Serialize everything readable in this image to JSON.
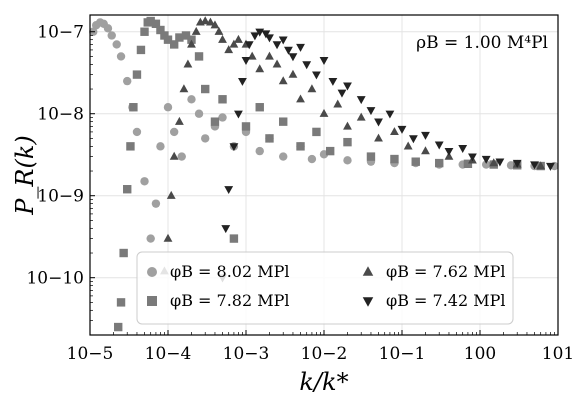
{
  "chart_data": {
    "type": "scatter",
    "xscale": "log",
    "yscale": "log",
    "xlim": [
      1e-05,
      10
    ],
    "ylim": [
      2e-11,
      1.6e-07
    ],
    "xlabel": "k/k*",
    "ylabel": "P_R(k)",
    "annotation": "ρB = 1.00 M⁴Pl",
    "grid": true,
    "legend_position": "lower-center",
    "x_ticks": [
      {
        "v": 1e-05,
        "label": "10−5"
      },
      {
        "v": 0.0001,
        "label": "10−4"
      },
      {
        "v": 0.001,
        "label": "10−3"
      },
      {
        "v": 0.01,
        "label": "10−2"
      },
      {
        "v": 0.1,
        "label": "10−1"
      },
      {
        "v": 1,
        "label": "100"
      },
      {
        "v": 10,
        "label": "101"
      }
    ],
    "y_ticks": [
      {
        "v": 1e-10,
        "label": "10−10"
      },
      {
        "v": 1e-09,
        "label": "10−9"
      },
      {
        "v": 1e-08,
        "label": "10−8"
      },
      {
        "v": 1e-07,
        "label": "10−7"
      }
    ],
    "series": [
      {
        "name": "φB = 8.02 MPl",
        "marker": "circle",
        "color": "#a0a0a0",
        "x": [
          1.1e-05,
          1.2e-05,
          1.35e-05,
          1.5e-05,
          1.7e-05,
          1.9e-05,
          2.2e-05,
          2.5e-05,
          3e-05,
          3.5e-05,
          4e-05,
          5e-05,
          6e-05,
          7e-05,
          8e-05,
          0.0001,
          0.00012,
          0.00015,
          0.0002,
          0.00025,
          0.0003,
          0.0004,
          0.0005,
          0.0007,
          0.001,
          0.0015,
          0.002,
          0.003,
          0.005,
          0.007,
          0.01,
          0.02,
          0.04,
          0.08,
          0.15,
          0.3,
          0.6,
          1.2,
          2.5,
          5,
          9
        ],
        "y": [
          1e-07,
          1.2e-07,
          1.3e-07,
          1.25e-07,
          1.1e-07,
          9e-08,
          7e-08,
          5e-08,
          2.5e-08,
          1.2e-08,
          6e-09,
          1.5e-09,
          3e-10,
          8e-10,
          4e-09,
          1.2e-08,
          6e-09,
          3e-09,
          1.5e-08,
          1e-08,
          5e-09,
          7e-09,
          9e-09,
          4e-09,
          6e-09,
          3.5e-09,
          5e-09,
          3e-09,
          4e-09,
          2.8e-09,
          3.2e-09,
          2.7e-09,
          2.6e-09,
          2.5e-09,
          2.5e-09,
          2.4e-09,
          2.4e-09,
          2.4e-09,
          2.35e-09,
          2.3e-09,
          2.3e-09
        ]
      },
      {
        "name": "φB = 7.82 MPl",
        "marker": "square",
        "color": "#7a7a7a",
        "x": [
          2.3e-05,
          2.5e-05,
          2.7e-05,
          3e-05,
          3.3e-05,
          3.6e-05,
          4e-05,
          4.5e-05,
          5e-05,
          5.5e-05,
          6e-05,
          7e-05,
          8e-05,
          9e-05,
          0.0001,
          0.00012,
          0.00014,
          0.00017,
          0.0002,
          0.00025,
          0.0003,
          0.0004,
          0.0005,
          0.0007,
          0.001,
          0.0015,
          0.002,
          0.003,
          0.005,
          0.008,
          0.012,
          0.02,
          0.04,
          0.08,
          0.15,
          0.3,
          0.7,
          1.5,
          3,
          6
        ],
        "y": [
          2.5e-11,
          5e-11,
          2e-10,
          1.2e-09,
          4e-09,
          1.2e-08,
          3e-08,
          6e-08,
          1e-07,
          1.3e-07,
          1.35e-07,
          1.25e-07,
          1.05e-07,
          9e-08,
          8e-08,
          7e-08,
          8.5e-08,
          9e-08,
          8e-08,
          5e-08,
          2e-08,
          8e-09,
          1.5e-08,
          3e-10,
          7e-09,
          1.2e-08,
          5e-09,
          8e-09,
          4e-09,
          6e-09,
          3.5e-09,
          4.5e-09,
          3e-09,
          2.8e-09,
          2.6e-09,
          2.5e-09,
          2.45e-09,
          2.4e-09,
          2.35e-09,
          2.3e-09
        ]
      },
      {
        "name": "φB = 7.62 MPl",
        "marker": "triangle",
        "color": "#4a4a4a",
        "x": [
          9e-05,
          0.0001,
          0.00011,
          0.00012,
          0.00014,
          0.00016,
          0.00018,
          0.0002,
          0.00023,
          0.00026,
          0.0003,
          0.00035,
          0.0004,
          0.00045,
          0.0005,
          0.0006,
          0.0007,
          0.0008,
          0.001,
          0.0012,
          0.0015,
          0.002,
          0.0025,
          0.003,
          0.004,
          0.005,
          0.007,
          0.01,
          0.015,
          0.02,
          0.03,
          0.05,
          0.08,
          0.12,
          0.2,
          0.4,
          0.8,
          1.5,
          3,
          6
        ],
        "y": [
          1.2e-10,
          3e-10,
          1e-09,
          3e-09,
          8e-09,
          2e-08,
          4e-08,
          7e-08,
          1e-07,
          1.3e-07,
          1.35e-07,
          1.3e-07,
          1.2e-07,
          1e-07,
          8e-08,
          6e-08,
          7e-08,
          8e-08,
          7e-08,
          5e-08,
          3.5e-08,
          5e-08,
          4e-08,
          2.5e-08,
          3e-08,
          1.5e-08,
          2e-08,
          1e-08,
          1.3e-08,
          7e-09,
          9e-09,
          5e-09,
          6e-09,
          4e-09,
          3.5e-09,
          3e-09,
          2.7e-09,
          2.5e-09,
          2.4e-09,
          2.3e-09
        ]
      },
      {
        "name": "φB = 7.42 MPl",
        "marker": "triangle-down",
        "color": "#222222",
        "x": [
          0.0005,
          0.00055,
          0.0006,
          0.0007,
          0.0008,
          0.0009,
          0.001,
          0.0011,
          0.0013,
          0.0015,
          0.0018,
          0.002,
          0.0025,
          0.003,
          0.0035,
          0.004,
          0.005,
          0.006,
          0.008,
          0.01,
          0.013,
          0.017,
          0.02,
          0.03,
          0.04,
          0.05,
          0.07,
          0.1,
          0.14,
          0.2,
          0.3,
          0.4,
          0.6,
          0.8,
          1.2,
          1.8,
          3,
          5,
          8
        ],
        "y": [
          1e-10,
          4e-10,
          1.2e-09,
          4e-09,
          1e-08,
          2.5e-08,
          4.5e-08,
          7e-08,
          9e-08,
          1e-07,
          9.5e-08,
          8.5e-08,
          7e-08,
          8e-08,
          6e-08,
          5e-08,
          6.5e-08,
          4e-08,
          3e-08,
          4.5e-08,
          2.5e-08,
          1.8e-08,
          2.2e-08,
          1.5e-08,
          1.1e-08,
          8e-09,
          1e-08,
          6.5e-09,
          5e-09,
          5.5e-09,
          4.2e-09,
          3.5e-09,
          3.8e-09,
          3e-09,
          2.8e-09,
          2.6e-09,
          2.5e-09,
          2.4e-09,
          2.3e-09
        ]
      }
    ]
  }
}
